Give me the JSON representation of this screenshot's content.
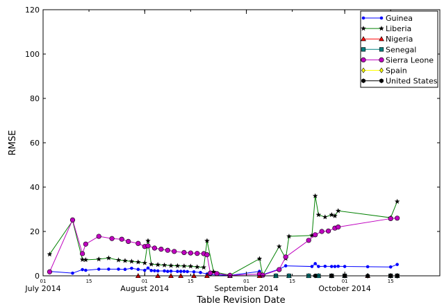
{
  "chart_data": {
    "type": "line",
    "xlabel": "Table Revision Date",
    "ylabel": "RMSE",
    "ylim": [
      0,
      120
    ],
    "y_ticks": [
      0,
      20,
      40,
      60,
      80,
      100,
      120
    ],
    "xlim": [
      "2014-07-01",
      "2014-10-30"
    ],
    "x_major_ticks": [
      {
        "date": "2014-07-01",
        "label": "July 2014"
      },
      {
        "date": "2014-08-01",
        "label": "August 2014"
      },
      {
        "date": "2014-09-01",
        "label": "September 2014"
      },
      {
        "date": "2014-10-01",
        "label": "October 2014"
      }
    ],
    "x_minor_ticks": [
      {
        "date": "2014-07-01",
        "label": "01"
      },
      {
        "date": "2014-07-15",
        "label": "15"
      },
      {
        "date": "2014-08-01",
        "label": "01"
      },
      {
        "date": "2014-08-15",
        "label": "15"
      },
      {
        "date": "2014-09-01",
        "label": "01"
      },
      {
        "date": "2014-09-15",
        "label": "15"
      },
      {
        "date": "2014-10-01",
        "label": "01"
      },
      {
        "date": "2014-10-15",
        "label": "15"
      }
    ],
    "grid": false,
    "legend_position": "top-right",
    "series": [
      {
        "name": "Guinea",
        "color": "#0000ff",
        "marker": "point",
        "points": [
          [
            "2014-07-03",
            2
          ],
          [
            "2014-07-10",
            1.2
          ],
          [
            "2014-07-13",
            2.8
          ],
          [
            "2014-07-14",
            2.5
          ],
          [
            "2014-07-18",
            3.0
          ],
          [
            "2014-07-21",
            3.0
          ],
          [
            "2014-07-24",
            3.0
          ],
          [
            "2014-07-26",
            2.9
          ],
          [
            "2014-07-28",
            3.4
          ],
          [
            "2014-07-30",
            2.9
          ],
          [
            "2014-08-01",
            2.5
          ],
          [
            "2014-08-02",
            3.5
          ],
          [
            "2014-08-03",
            2.4
          ],
          [
            "2014-08-04",
            2.3
          ],
          [
            "2014-08-05",
            2.2
          ],
          [
            "2014-08-07",
            2.2
          ],
          [
            "2014-08-08",
            2.0
          ],
          [
            "2014-08-09",
            2.1
          ],
          [
            "2014-08-11",
            2.0
          ],
          [
            "2014-08-12",
            2.0
          ],
          [
            "2014-08-13",
            2.0
          ],
          [
            "2014-08-14",
            1.9
          ],
          [
            "2014-08-16",
            1.8
          ],
          [
            "2014-08-18",
            1.5
          ],
          [
            "2014-08-20",
            0.8
          ],
          [
            "2014-08-21",
            0.5
          ],
          [
            "2014-08-27",
            0.2
          ],
          [
            "2014-09-05",
            2.0
          ],
          [
            "2014-09-06",
            0.5
          ],
          [
            "2014-09-11",
            3.0
          ],
          [
            "2014-09-13",
            4.5
          ],
          [
            "2014-09-21",
            4.2
          ],
          [
            "2014-09-22",
            5.5
          ],
          [
            "2014-09-23",
            4.2
          ],
          [
            "2014-09-25",
            4.3
          ],
          [
            "2014-09-27",
            4.2
          ],
          [
            "2014-09-28",
            4.2
          ],
          [
            "2014-09-29",
            4.3
          ],
          [
            "2014-10-01",
            4.2
          ],
          [
            "2014-10-08",
            4.1
          ],
          [
            "2014-10-15",
            4.0
          ],
          [
            "2014-10-17",
            5.1
          ]
        ]
      },
      {
        "name": "Liberia",
        "color": "#008000",
        "marker": "star",
        "points": [
          [
            "2014-07-03",
            9.7
          ],
          [
            "2014-07-10",
            24.8
          ],
          [
            "2014-07-13",
            7.3
          ],
          [
            "2014-07-14",
            7.2
          ],
          [
            "2014-07-18",
            7.5
          ],
          [
            "2014-07-21",
            8.0
          ],
          [
            "2014-07-24",
            7.1
          ],
          [
            "2014-07-26",
            6.8
          ],
          [
            "2014-07-28",
            6.5
          ],
          [
            "2014-07-30",
            6.2
          ],
          [
            "2014-08-01",
            5.8
          ],
          [
            "2014-08-02",
            15.8
          ],
          [
            "2014-08-03",
            5.2
          ],
          [
            "2014-08-05",
            5.0
          ],
          [
            "2014-08-07",
            4.8
          ],
          [
            "2014-08-09",
            4.6
          ],
          [
            "2014-08-11",
            4.5
          ],
          [
            "2014-08-13",
            4.4
          ],
          [
            "2014-08-15",
            4.3
          ],
          [
            "2014-08-17",
            4.0
          ],
          [
            "2014-08-19",
            3.8
          ],
          [
            "2014-08-20",
            15.8
          ],
          [
            "2014-08-22",
            1.8
          ],
          [
            "2014-08-27",
            0.3
          ],
          [
            "2014-09-05",
            7.7
          ],
          [
            "2014-09-06",
            0.2
          ],
          [
            "2014-09-11",
            13.2
          ],
          [
            "2014-09-13",
            7.8
          ],
          [
            "2014-09-14",
            17.8
          ],
          [
            "2014-09-21",
            18.2
          ],
          [
            "2014-09-22",
            36.0
          ],
          [
            "2014-09-23",
            27.5
          ],
          [
            "2014-09-25",
            26.5
          ],
          [
            "2014-09-27",
            27.5
          ],
          [
            "2014-09-28",
            27.0
          ],
          [
            "2014-09-29",
            29.3
          ],
          [
            "2014-10-15",
            26.2
          ],
          [
            "2014-10-17",
            33.5
          ]
        ]
      },
      {
        "name": "Nigeria",
        "color": "#ff0000",
        "marker": "triangle",
        "points": [
          [
            "2014-07-30",
            0
          ],
          [
            "2014-08-05",
            0
          ],
          [
            "2014-08-09",
            0
          ],
          [
            "2014-08-12",
            0
          ],
          [
            "2014-08-16",
            0
          ],
          [
            "2014-08-20",
            0
          ],
          [
            "2014-08-27",
            0
          ],
          [
            "2014-09-05",
            0
          ],
          [
            "2014-09-10",
            0
          ],
          [
            "2014-09-14",
            0
          ],
          [
            "2014-09-20",
            0
          ],
          [
            "2014-09-23",
            0
          ],
          [
            "2014-09-27",
            0
          ],
          [
            "2014-10-01",
            0
          ],
          [
            "2014-10-08",
            0
          ],
          [
            "2014-10-15",
            0
          ],
          [
            "2014-10-17",
            0
          ]
        ]
      },
      {
        "name": "Senegal",
        "color": "#008080",
        "marker": "square",
        "points": [
          [
            "2014-09-10",
            0
          ],
          [
            "2014-09-14",
            0
          ],
          [
            "2014-09-20",
            0
          ],
          [
            "2014-09-23",
            0
          ],
          [
            "2014-09-27",
            0
          ],
          [
            "2014-10-01",
            0
          ],
          [
            "2014-10-15",
            0
          ],
          [
            "2014-10-17",
            0
          ]
        ]
      },
      {
        "name": "Sierra Leone",
        "color": "#bf00bf",
        "marker": "circle",
        "points": [
          [
            "2014-07-03",
            1.8
          ],
          [
            "2014-07-10",
            25.2
          ],
          [
            "2014-07-13",
            10.0
          ],
          [
            "2014-07-14",
            14.3
          ],
          [
            "2014-07-18",
            17.8
          ],
          [
            "2014-07-22",
            16.8
          ],
          [
            "2014-07-25",
            16.5
          ],
          [
            "2014-07-27",
            15.5
          ],
          [
            "2014-07-30",
            14.6
          ],
          [
            "2014-08-01",
            13.2
          ],
          [
            "2014-08-02",
            13.5
          ],
          [
            "2014-08-04",
            12.5
          ],
          [
            "2014-08-06",
            12.0
          ],
          [
            "2014-08-08",
            11.5
          ],
          [
            "2014-08-10",
            11.0
          ],
          [
            "2014-08-13",
            10.5
          ],
          [
            "2014-08-15",
            10.3
          ],
          [
            "2014-08-17",
            10.1
          ],
          [
            "2014-08-19",
            10.0
          ],
          [
            "2014-08-20",
            9.5
          ],
          [
            "2014-08-21",
            1.2
          ],
          [
            "2014-08-23",
            1.0
          ],
          [
            "2014-08-27",
            0.2
          ],
          [
            "2014-09-05",
            0.8
          ],
          [
            "2014-09-06",
            0.3
          ],
          [
            "2014-09-11",
            2.8
          ],
          [
            "2014-09-13",
            8.5
          ],
          [
            "2014-09-20",
            16.0
          ],
          [
            "2014-09-22",
            18.5
          ],
          [
            "2014-09-24",
            20.0
          ],
          [
            "2014-09-26",
            20.2
          ],
          [
            "2014-09-28",
            21.5
          ],
          [
            "2014-09-29",
            22.0
          ],
          [
            "2014-10-15",
            25.8
          ],
          [
            "2014-10-17",
            26.0
          ]
        ]
      },
      {
        "name": "Spain",
        "color": "#ffff00",
        "marker": "diamond",
        "points": [
          [
            "2014-10-08",
            0
          ],
          [
            "2014-10-15",
            0
          ],
          [
            "2014-10-17",
            0
          ]
        ]
      },
      {
        "name": "United States",
        "color": "#000000",
        "marker": "hexagon",
        "points": [
          [
            "2014-09-22",
            0
          ],
          [
            "2014-09-27",
            0
          ],
          [
            "2014-10-01",
            0
          ],
          [
            "2014-10-08",
            0
          ],
          [
            "2014-10-15",
            0
          ],
          [
            "2014-10-17",
            0
          ]
        ]
      }
    ]
  }
}
